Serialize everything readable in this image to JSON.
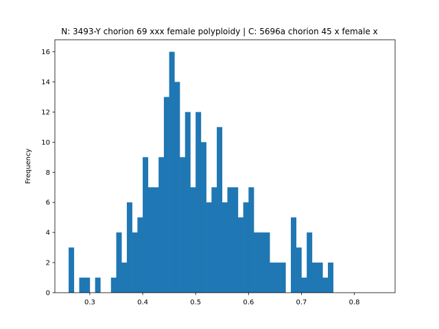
{
  "chart_data": {
    "type": "histogram",
    "title": "N: 3493-Y chorion 69 xxx female polyploidy | C: 5696a chorion 45 x female x",
    "xlabel": "",
    "ylabel": "Frequency",
    "xlim": [
      0.234,
      0.877
    ],
    "ylim": [
      0,
      16.8
    ],
    "x_ticks": [
      0.3,
      0.4,
      0.5,
      0.6,
      0.7,
      0.8
    ],
    "x_tick_labels": [
      "0.3",
      "0.4",
      "0.5",
      "0.6",
      "0.7",
      "0.8"
    ],
    "y_ticks": [
      0,
      2,
      4,
      6,
      8,
      10,
      12,
      14,
      16
    ],
    "y_tick_labels": [
      "0",
      "2",
      "4",
      "6",
      "8",
      "10",
      "12",
      "14",
      "16"
    ],
    "bin_start": 0.26,
    "bin_width": 0.01,
    "values": [
      3,
      0,
      1,
      1,
      0,
      1,
      0,
      0,
      1,
      4,
      2,
      6,
      4,
      5,
      9,
      7,
      7,
      9,
      13,
      16,
      14,
      9,
      12,
      7,
      12,
      10,
      6,
      7,
      11,
      6,
      7,
      7,
      5,
      6,
      7,
      4,
      4,
      4,
      2,
      2,
      2,
      0,
      5,
      3,
      1,
      4,
      2,
      2,
      1,
      2
    ],
    "bar_color": "#1f77b4",
    "grid": false,
    "legend": "none"
  }
}
